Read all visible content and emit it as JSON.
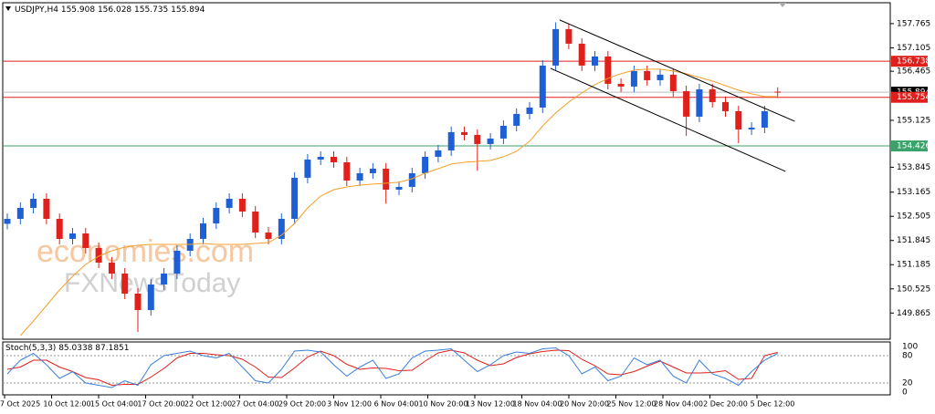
{
  "chart_data": {
    "type": "candlestick",
    "symbol": "USDJPY,H4",
    "up_color": "#1f5fd6",
    "down_color": "#e0201b",
    "open": [
      152.3,
      152.436,
      152.735,
      152.984,
      152.436,
      151.889,
      152.038,
      151.64,
      151.241,
      150.942,
      150.395,
      149.946,
      150.644,
      150.942,
      151.565,
      151.889,
      152.312,
      152.735,
      152.984,
      152.636,
      152.063,
      151.889,
      152.436,
      153.557,
      154.055,
      154.13,
      153.98,
      153.482,
      153.681,
      153.806,
      153.233,
      153.308,
      153.681,
      154.13,
      154.304,
      154.802,
      154.727,
      154.478,
      154.628,
      154.976,
      155.3,
      155.474,
      156.62,
      157.616,
      157.217,
      156.62,
      156.869,
      156.122,
      156.047,
      156.47,
      156.221,
      156.371,
      155.922,
      155.225,
      155.972,
      155.624,
      155.375,
      154.877,
      154.926,
      155.908
    ],
    "high": [
      152.586,
      152.885,
      153.134,
      153.134,
      152.586,
      152.188,
      152.188,
      151.79,
      151.391,
      151.092,
      150.545,
      150.794,
      151.092,
      151.715,
      152.039,
      152.462,
      152.885,
      153.134,
      153.134,
      152.786,
      152.213,
      152.586,
      153.707,
      154.205,
      154.28,
      154.28,
      154.13,
      153.831,
      153.956,
      153.956,
      153.458,
      153.831,
      154.28,
      154.454,
      154.952,
      154.952,
      154.877,
      154.778,
      155.126,
      155.45,
      155.624,
      156.77,
      157.8,
      157.766,
      157.367,
      157.019,
      157.019,
      156.272,
      156.62,
      156.62,
      156.521,
      156.521,
      156.072,
      156.122,
      156.122,
      155.774,
      155.525,
      155.076,
      155.525,
      156.028
    ],
    "low": [
      152.15,
      152.286,
      152.585,
      152.286,
      151.739,
      151.739,
      151.49,
      151.091,
      150.792,
      150.245,
      149.35,
      149.796,
      150.494,
      150.792,
      151.415,
      151.739,
      152.162,
      152.585,
      152.486,
      151.913,
      151.739,
      151.739,
      152.286,
      153.407,
      153.905,
      153.83,
      153.332,
      153.332,
      153.531,
      152.85,
      153.083,
      153.158,
      153.531,
      153.98,
      154.154,
      154.577,
      153.75,
      154.328,
      154.478,
      154.826,
      155.15,
      155.324,
      156.47,
      157.067,
      156.47,
      156.47,
      155.972,
      155.897,
      155.897,
      156.071,
      156.071,
      155.772,
      154.7,
      155.075,
      155.474,
      155.225,
      154.5,
      154.727,
      154.776,
      155.735
    ],
    "close": [
      152.436,
      152.735,
      152.984,
      152.436,
      151.889,
      152.038,
      151.64,
      151.241,
      150.942,
      150.395,
      149.946,
      150.644,
      150.942,
      151.565,
      151.889,
      152.312,
      152.735,
      152.984,
      152.636,
      152.063,
      151.889,
      152.436,
      153.557,
      154.055,
      154.13,
      153.98,
      153.482,
      153.681,
      153.806,
      153.233,
      153.308,
      153.681,
      154.13,
      154.304,
      154.802,
      154.727,
      154.478,
      154.628,
      154.976,
      155.3,
      155.474,
      156.62,
      157.616,
      157.217,
      156.62,
      156.869,
      156.122,
      156.047,
      156.47,
      156.221,
      156.371,
      155.922,
      155.225,
      155.972,
      155.624,
      155.375,
      154.877,
      154.926,
      155.375,
      155.894
    ],
    "moving_average": {
      "color": "#f5a02a",
      "values": [
        null,
        149.249,
        149.648,
        150.071,
        150.494,
        150.868,
        151.191,
        151.416,
        151.565,
        151.664,
        151.714,
        151.739,
        151.739,
        151.739,
        151.739,
        151.764,
        151.739,
        151.739,
        151.739,
        151.764,
        151.789,
        151.988,
        152.312,
        152.735,
        153.059,
        153.233,
        153.308,
        153.358,
        153.383,
        153.408,
        153.433,
        153.532,
        153.681,
        153.806,
        153.931,
        153.98,
        154.005,
        154.03,
        154.13,
        154.279,
        154.553,
        154.976,
        155.325,
        155.624,
        155.873,
        156.097,
        156.271,
        156.396,
        156.495,
        156.52,
        156.52,
        156.47,
        156.396,
        156.296,
        156.197,
        156.072,
        155.947,
        155.848,
        155.773,
        155.773
      ]
    },
    "ylim": [
      149.15,
      158.41
    ],
    "yticks": [
      157.765,
      157.105,
      156.465,
      155.125,
      153.845,
      153.165,
      152.505,
      151.845,
      151.185,
      150.525,
      149.865
    ],
    "levels": [
      {
        "value": 156.738,
        "color": "#e0201b"
      },
      {
        "value": 155.894,
        "color": "#000000"
      },
      {
        "value": 155.754,
        "color": "#e0201b"
      },
      {
        "value": 154.426,
        "color": "#3aa36b"
      }
    ],
    "channel": [
      {
        "x": [
          42.3,
          60.3
        ],
        "y": [
          157.865,
          155.101
        ]
      },
      {
        "x": [
          41.6,
          59.6
        ],
        "y": [
          156.545,
          153.731
        ]
      }
    ],
    "x_labels": [
      "7 Oct 2025",
      "10 Oct 12:00",
      "15 Oct 04:00",
      "17 Oct 20:00",
      "22 Oct 12:00",
      "27 Oct 04:00",
      "29 Oct 20:00",
      "3 Nov 12:00",
      "6 Nov 04:00",
      "10 Nov 20:00",
      "13 Nov 12:00",
      "18 Nov 04:00",
      "20 Nov 20:00",
      "25 Nov 12:00",
      "28 Nov 04:00",
      "2 Dec 20:00",
      "5 Dec 12:00"
    ],
    "oscillator": {
      "label": "Stoch(5,3,3)",
      "ylim": [
        0,
        100
      ],
      "yticks": [
        100,
        80,
        20,
        0
      ],
      "levels": [
        80,
        20
      ],
      "main": {
        "color": "#3b7fd9",
        "values": [
          40,
          70,
          85,
          60,
          30,
          45,
          20,
          15,
          10,
          25,
          15,
          60,
          80,
          85,
          90,
          80,
          75,
          85,
          55,
          25,
          20,
          50,
          90,
          92,
          88,
          60,
          35,
          55,
          70,
          30,
          40,
          75,
          90,
          92,
          95,
          70,
          45,
          60,
          80,
          88,
          85,
          95,
          97,
          80,
          40,
          55,
          25,
          35,
          75,
          60,
          70,
          35,
          20,
          70,
          40,
          30,
          15,
          45,
          70,
          85.0338
        ]
      },
      "signal": {
        "color": "#e0201b",
        "values": [
          50,
          55,
          70,
          70,
          55,
          45,
          32,
          27,
          15,
          17,
          17,
          33,
          52,
          75,
          85,
          85,
          82,
          80,
          72,
          55,
          33,
          32,
          53,
          77,
          90,
          80,
          61,
          50,
          53,
          52,
          47,
          48,
          68,
          86,
          92,
          86,
          70,
          58,
          62,
          76,
          84,
          89,
          92,
          91,
          72,
          58,
          40,
          38,
          45,
          57,
          68,
          55,
          42,
          42,
          43,
          47,
          28,
          30,
          80,
          87.1851
        ]
      }
    },
    "watermark": [
      "economies.com",
      "FXNewsToday"
    ]
  }
}
